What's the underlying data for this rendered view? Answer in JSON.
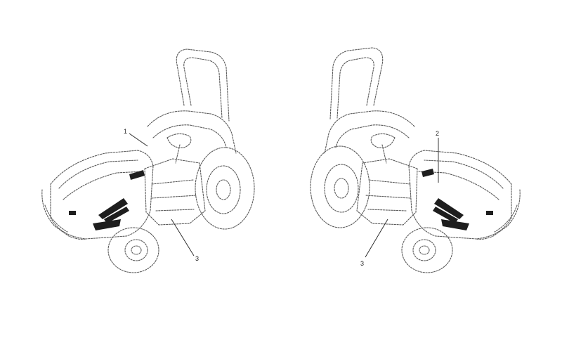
{
  "callouts": {
    "left": [
      "1",
      "3"
    ],
    "right": [
      "2",
      "3"
    ]
  },
  "colors": {
    "line": "#5a5a5a",
    "decal": "#1e1e1e",
    "background": "#ffffff"
  }
}
